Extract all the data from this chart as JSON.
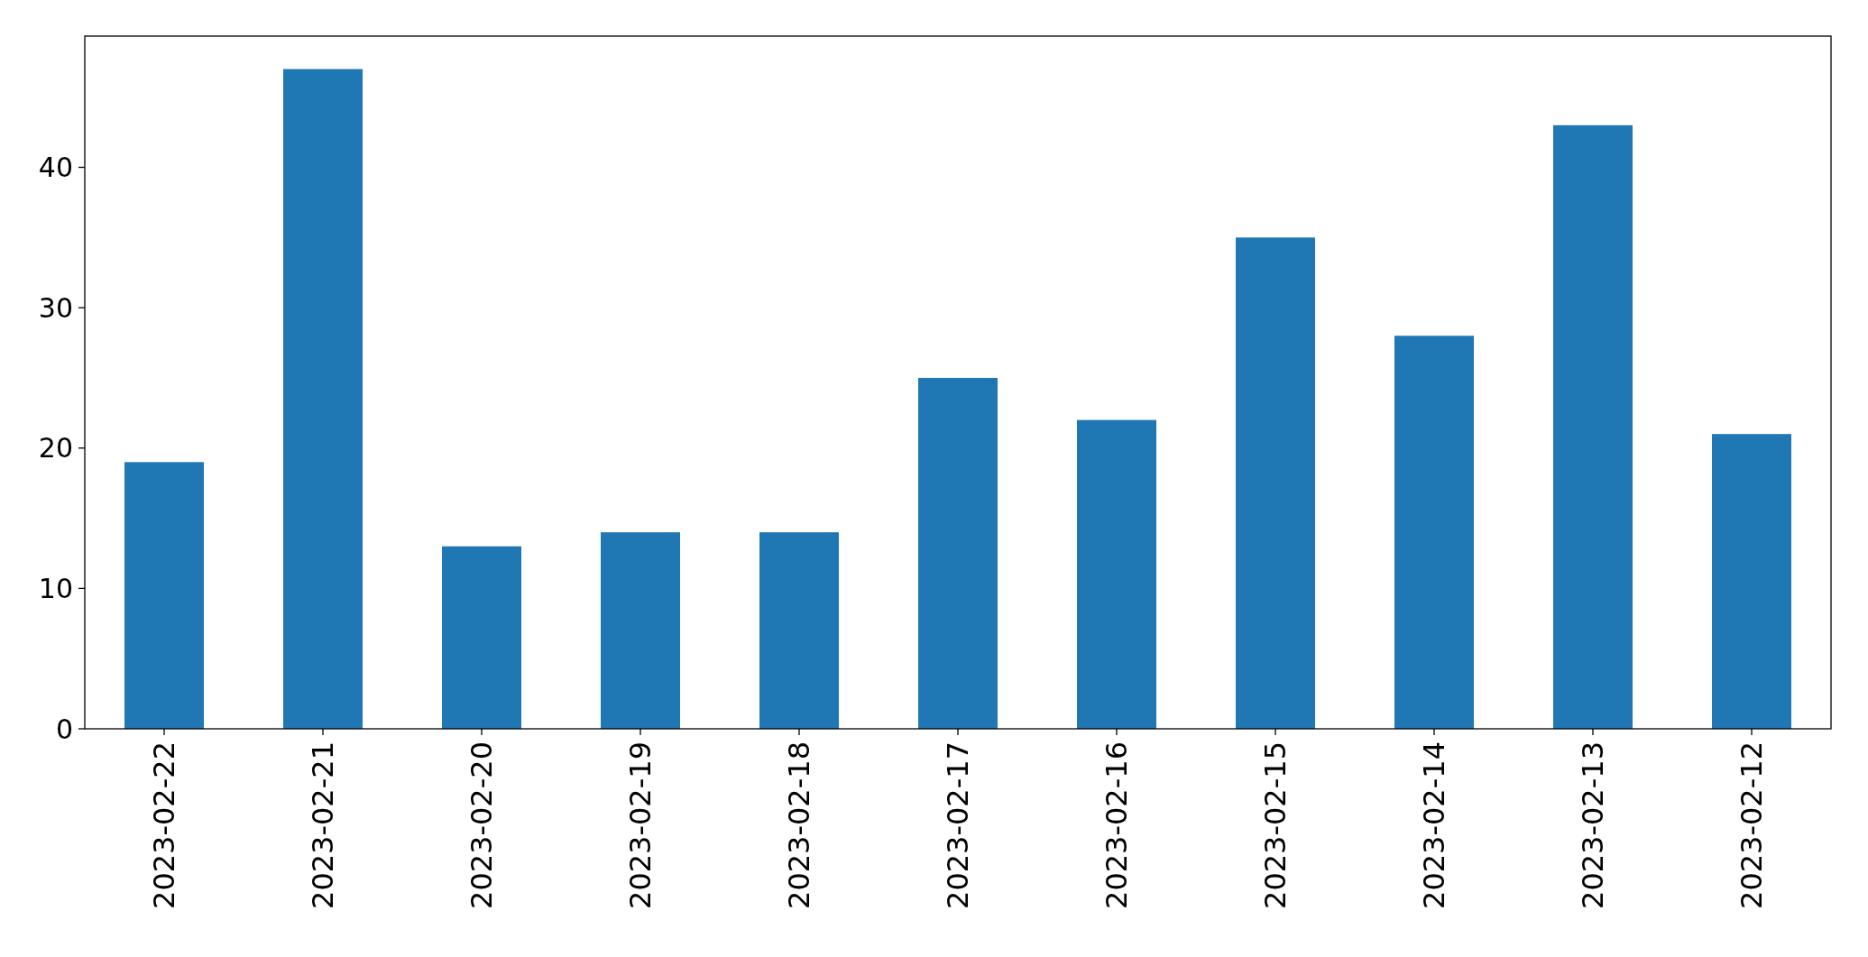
{
  "chart_data": {
    "type": "bar",
    "categories": [
      "2023-02-22",
      "2023-02-21",
      "2023-02-20",
      "2023-02-19",
      "2023-02-18",
      "2023-02-17",
      "2023-02-16",
      "2023-02-15",
      "2023-02-14",
      "2023-02-13",
      "2023-02-12"
    ],
    "values": [
      19,
      47,
      13,
      14,
      14,
      25,
      22,
      35,
      28,
      43,
      21
    ],
    "color": "#1f77b4",
    "ylim": [
      0,
      49.35
    ],
    "yticks": [
      0,
      10,
      20,
      30,
      40
    ]
  }
}
